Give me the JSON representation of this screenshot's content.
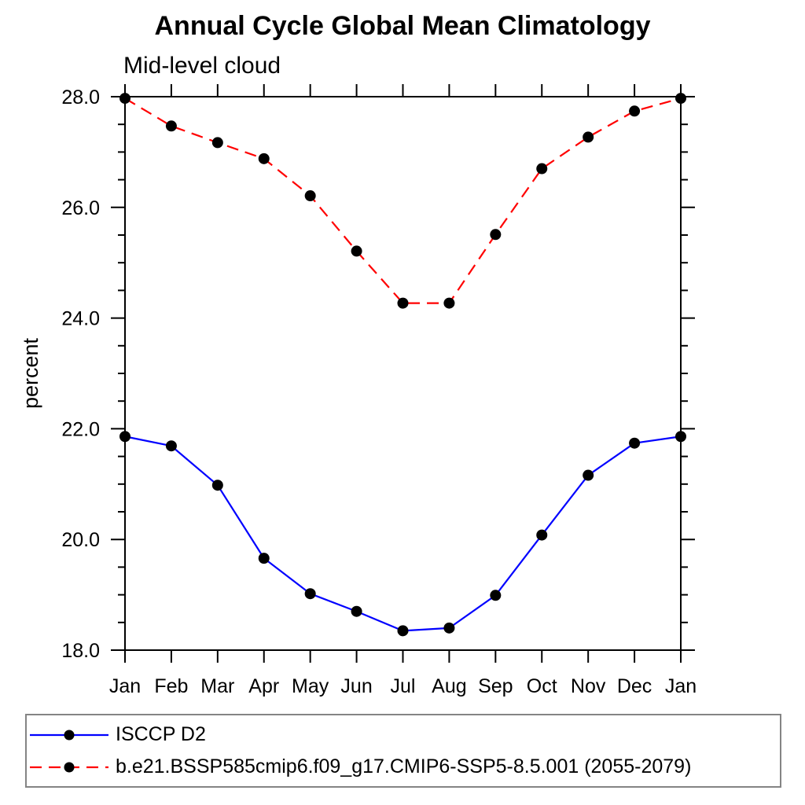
{
  "chart_data": {
    "type": "line",
    "title": "Annual Cycle Global Mean Climatology",
    "subtitle": "Mid-level cloud",
    "xlabel": "",
    "ylabel": "percent",
    "categories": [
      "Jan",
      "Feb",
      "Mar",
      "Apr",
      "May",
      "Jun",
      "Jul",
      "Aug",
      "Sep",
      "Oct",
      "Nov",
      "Dec",
      "Jan"
    ],
    "ylim": [
      18.0,
      28.0
    ],
    "yticks": [
      {
        "value": 28,
        "label": "28.0"
      },
      {
        "value": 26,
        "label": "26.0"
      },
      {
        "value": 24,
        "label": "24.0"
      },
      {
        "value": 22,
        "label": "22.0"
      },
      {
        "value": 20,
        "label": "20.0"
      },
      {
        "value": 18,
        "label": "18.0"
      }
    ],
    "yminor_step": 0.5,
    "grid": false,
    "legend_position": "bottom-left",
    "axis_color": "#000000",
    "legend_border_color": "#848484",
    "series": [
      {
        "name": "ISCCP D2",
        "line_color": "#0000ff",
        "line_style": "solid",
        "marker": "filled-circle",
        "marker_color": "#000000",
        "values": [
          21.86,
          21.69,
          20.98,
          19.66,
          19.02,
          18.7,
          18.35,
          18.4,
          18.99,
          20.08,
          21.16,
          21.74,
          21.86
        ]
      },
      {
        "name": "b.e21.BSSP585cmip6.f09_g17.CMIP6-SSP5-8.5.001 (2055-2079)",
        "line_color": "#ff0000",
        "line_style": "dashed",
        "marker": "filled-circle",
        "marker_color": "#000000",
        "values": [
          27.97,
          27.47,
          27.17,
          26.88,
          26.21,
          25.21,
          24.27,
          24.27,
          25.51,
          26.7,
          27.27,
          27.74,
          27.97
        ]
      }
    ]
  }
}
